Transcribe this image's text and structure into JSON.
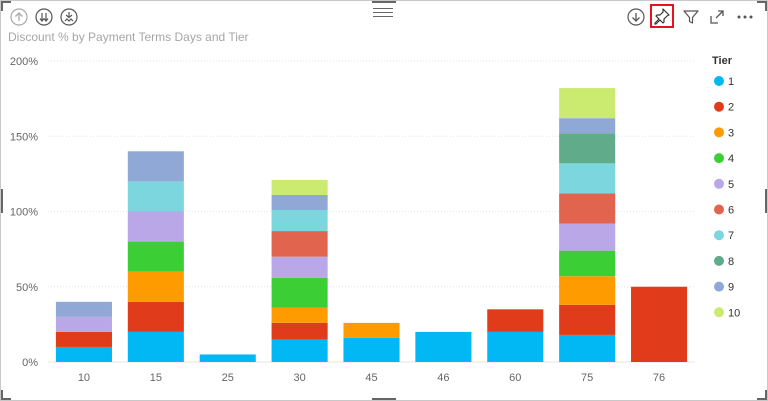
{
  "visual_header": {
    "left_icons": [
      "drill-up-icon",
      "go-to-next-level-icon",
      "expand-all-down-icon"
    ],
    "right_icons": [
      "drill-down-icon",
      "pin-icon",
      "filter-icon",
      "focus-mode-icon",
      "more-options-icon"
    ],
    "highlighted_icon": "pin-icon",
    "highlight_color": "#e81123"
  },
  "chart_data": {
    "type": "bar",
    "stacked": true,
    "title": "Discount % by Payment Terms Days and Tier",
    "xlabel": "",
    "ylabel": "",
    "categories": [
      "10",
      "15",
      "25",
      "30",
      "45",
      "46",
      "60",
      "75",
      "76"
    ],
    "ylim": [
      0,
      200
    ],
    "yticks": [
      "0%",
      "50%",
      "100%",
      "150%",
      "200%"
    ],
    "ytick_values": [
      0,
      50,
      100,
      150,
      200
    ],
    "grid": true,
    "legend": {
      "title": "Tier",
      "position": "right"
    },
    "series": [
      {
        "name": "1",
        "color": "#01b8f4",
        "values": [
          10,
          20,
          5,
          15,
          16,
          20,
          20,
          18,
          0
        ]
      },
      {
        "name": "2",
        "color": "#e03b1a",
        "values": [
          10,
          20,
          0,
          11,
          0,
          0,
          15,
          20,
          50
        ]
      },
      {
        "name": "3",
        "color": "#fd9b00",
        "values": [
          0,
          20,
          0,
          10,
          10,
          0,
          0,
          19,
          0
        ]
      },
      {
        "name": "4",
        "color": "#3ccf35",
        "values": [
          0,
          20,
          0,
          20,
          0,
          0,
          0,
          17,
          0
        ]
      },
      {
        "name": "5",
        "color": "#b9a7e8",
        "values": [
          10,
          20,
          0,
          14,
          0,
          0,
          0,
          18,
          0
        ]
      },
      {
        "name": "6",
        "color": "#e0644e",
        "values": [
          0,
          0,
          0,
          17,
          0,
          0,
          0,
          20,
          0
        ]
      },
      {
        "name": "7",
        "color": "#7bd6de",
        "values": [
          0,
          20,
          0,
          14,
          0,
          0,
          0,
          20,
          0
        ]
      },
      {
        "name": "8",
        "color": "#5fab8a",
        "values": [
          0,
          0,
          0,
          0,
          0,
          0,
          0,
          20,
          0
        ]
      },
      {
        "name": "9",
        "color": "#8fa8d6",
        "values": [
          10,
          20,
          0,
          10,
          0,
          0,
          0,
          10,
          0
        ]
      },
      {
        "name": "10",
        "color": "#caea70",
        "values": [
          0,
          0,
          0,
          10,
          0,
          0,
          0,
          20,
          0
        ]
      }
    ]
  }
}
